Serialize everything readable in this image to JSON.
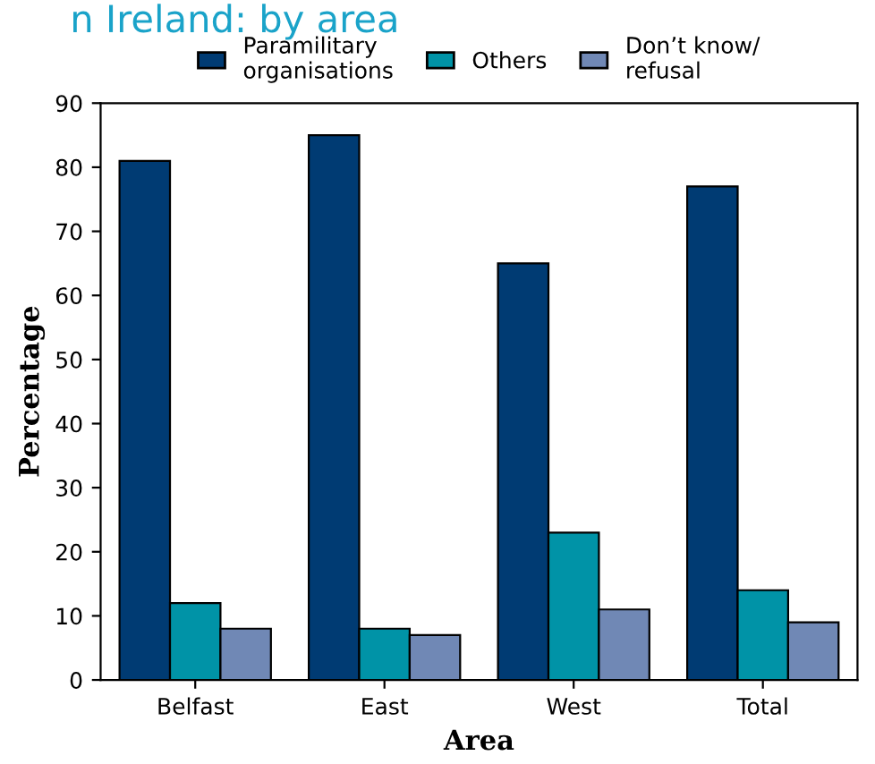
{
  "chart_data": {
    "type": "bar",
    "title": "n Ireland: by area",
    "xlabel": "Area",
    "ylabel": "Percentage",
    "categories": [
      "Belfast",
      "East",
      "West",
      "Total"
    ],
    "series": [
      {
        "name": "Paramilitary\norganisations",
        "color": "#003b73",
        "values": [
          81,
          85,
          65,
          77
        ]
      },
      {
        "name": "Others",
        "color": "#0093a7",
        "values": [
          12,
          8,
          23,
          14
        ]
      },
      {
        "name": "Don’t know/\nrefusal",
        "color": "#7088b5",
        "values": [
          8,
          7,
          11,
          9
        ]
      }
    ],
    "ylim": [
      0,
      90
    ],
    "yticks": [
      0,
      10,
      20,
      30,
      40,
      50,
      60,
      70,
      80,
      90
    ],
    "grid": false,
    "legend": "top"
  }
}
